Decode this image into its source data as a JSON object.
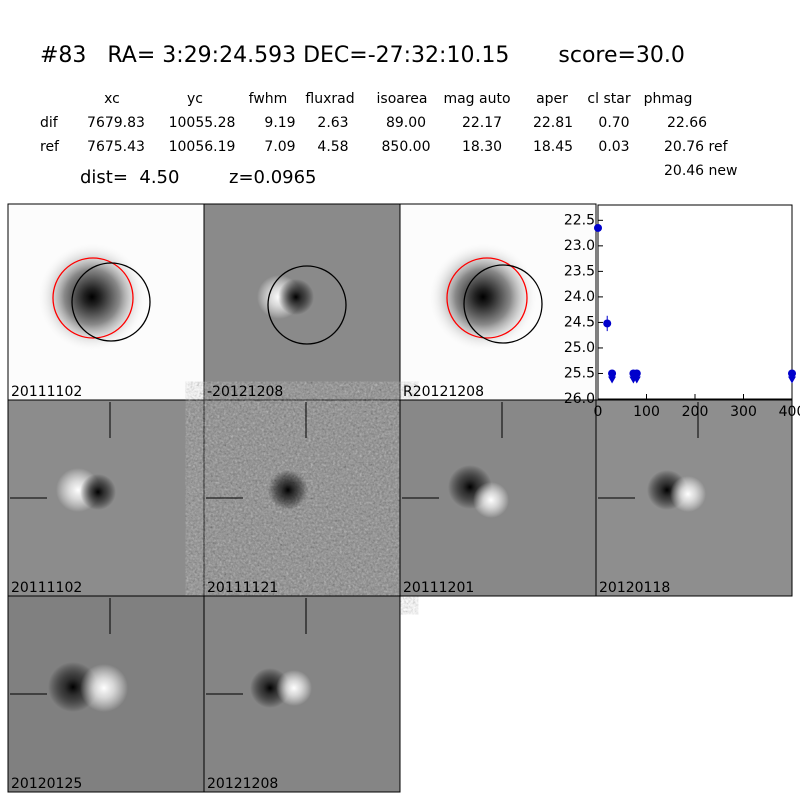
{
  "header": {
    "title": "#83   RA= 3:29:24.593 DEC=-27:32:10.15       score=30.0",
    "dist": "dist=  4.50",
    "z": "z=0.0965",
    "new_mag": "20.46 new"
  },
  "table": {
    "columns": [
      "xc",
      "yc",
      "fwhm",
      "fluxrad",
      "isoarea",
      "mag auto",
      "aper",
      "cl star",
      "phmag"
    ],
    "rows": [
      [
        "dif",
        "7679.83",
        "10055.28",
        "9.19",
        "2.63",
        "89.00",
        "22.17",
        "22.81",
        "0.70",
        "22.66"
      ],
      [
        "ref",
        "7675.43",
        "10056.19",
        "7.09",
        "4.58",
        "850.00",
        "18.30",
        "18.45",
        "0.03",
        "20.76 ref"
      ]
    ]
  },
  "panels": [
    {
      "label": "20111102",
      "color": "#000000"
    },
    {
      "label": "-20121208",
      "color": "#000000"
    },
    {
      "label": "R20121208",
      "color": "#000000"
    },
    {
      "label": "20111102",
      "color": "#ff0000"
    },
    {
      "label": "20111121",
      "color": "#000000"
    },
    {
      "label": "20111201",
      "color": "#000000"
    },
    {
      "label": "20120118",
      "color": "#000000"
    },
    {
      "label": "20120125",
      "color": "#000000"
    },
    {
      "label": "20121208",
      "color": "#000000"
    }
  ],
  "chart_data": {
    "type": "scatter",
    "xlim": [
      0,
      400
    ],
    "xticks": [
      0,
      100,
      200,
      300,
      400
    ],
    "ylim": [
      22.2,
      26.0
    ],
    "y_inverted": true,
    "yticks": [
      22.5,
      {
        "value": 23,
        "label": "23.0"
      },
      23.5,
      {
        "value": 24,
        "label": "24.0"
      },
      24.5,
      {
        "value": 25,
        "label": "25.0"
      },
      25.5,
      {
        "value": 26,
        "label": "26.0"
      }
    ],
    "series": [
      {
        "color": "#0000cc",
        "marker": "circle",
        "x": [
          0,
          19
        ],
        "values": [
          22.65,
          24.52
        ],
        "errors": [
          0.03,
          0.15
        ]
      },
      {
        "color": "#0000cc",
        "marker": "upper-limit",
        "x": [
          29,
          73,
          80,
          400
        ],
        "values": [
          25.5,
          25.5,
          25.5,
          25.5
        ]
      }
    ]
  }
}
